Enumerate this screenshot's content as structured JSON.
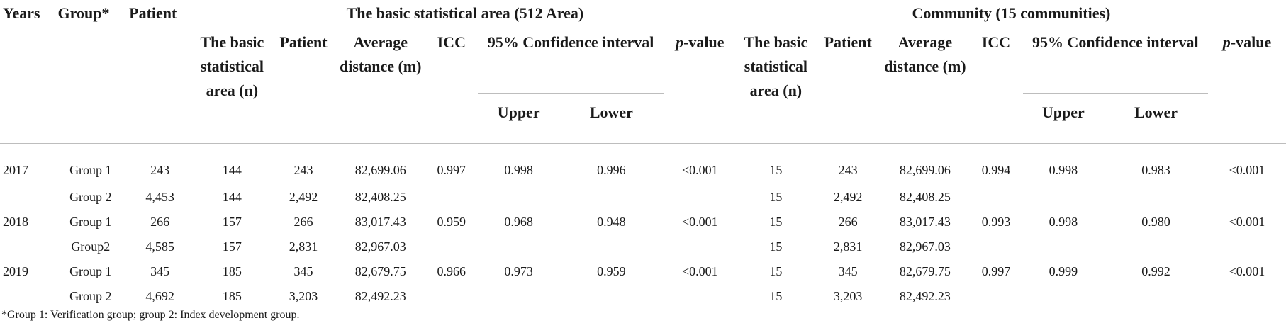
{
  "headers": {
    "years": "Years",
    "group": "Group*",
    "patient": "Patient",
    "bsa_title": "The basic statistical area (512 Area)",
    "community_title": "Community (15 communities)",
    "sub": {
      "area_n": "The basic statistical area (n)",
      "patient": "Patient",
      "avg_distance": "Average distance (m)",
      "icc": "ICC",
      "ci": "95% Confidence interval",
      "p_prefix": "p",
      "p_suffix": "-value",
      "upper": "Upper",
      "lower": "Lower"
    }
  },
  "rows": [
    {
      "year": "2017",
      "group": "Group 1",
      "patient": "243",
      "bsa": {
        "n": "144",
        "patient": "243",
        "dist": "82,699.06",
        "icc": "0.997",
        "upper": "0.998",
        "lower": "0.996",
        "p": "<0.001"
      },
      "com": {
        "n": "15",
        "patient": "243",
        "dist": "82,699.06",
        "icc": "0.994",
        "upper": "0.998",
        "lower": "0.983",
        "p": "<0.001"
      }
    },
    {
      "year": "",
      "group": "Group 2",
      "patient": "4,453",
      "bsa": {
        "n": "144",
        "patient": "2,492",
        "dist": "82,408.25",
        "icc": "",
        "upper": "",
        "lower": "",
        "p": ""
      },
      "com": {
        "n": "15",
        "patient": "2,492",
        "dist": "82,408.25",
        "icc": "",
        "upper": "",
        "lower": "",
        "p": ""
      }
    },
    {
      "year": "2018",
      "group": "Group 1",
      "patient": "266",
      "bsa": {
        "n": "157",
        "patient": "266",
        "dist": "83,017.43",
        "icc": "0.959",
        "upper": "0.968",
        "lower": "0.948",
        "p": "<0.001"
      },
      "com": {
        "n": "15",
        "patient": "266",
        "dist": "83,017.43",
        "icc": "0.993",
        "upper": "0.998",
        "lower": "0.980",
        "p": "<0.001"
      }
    },
    {
      "year": "",
      "group": "Group2",
      "patient": "4,585",
      "bsa": {
        "n": "157",
        "patient": "2,831",
        "dist": "82,967.03",
        "icc": "",
        "upper": "",
        "lower": "",
        "p": ""
      },
      "com": {
        "n": "15",
        "patient": "2,831",
        "dist": "82,967.03",
        "icc": "",
        "upper": "",
        "lower": "",
        "p": ""
      }
    },
    {
      "year": "2019",
      "group": "Group 1",
      "patient": "345",
      "bsa": {
        "n": "185",
        "patient": "345",
        "dist": "82,679.75",
        "icc": "0.966",
        "upper": "0.973",
        "lower": "0.959",
        "p": "<0.001"
      },
      "com": {
        "n": "15",
        "patient": "345",
        "dist": "82,679.75",
        "icc": "0.997",
        "upper": "0.999",
        "lower": "0.992",
        "p": "<0.001"
      }
    },
    {
      "year": "",
      "group": "Group 2",
      "patient": "4,692",
      "bsa": {
        "n": "185",
        "patient": "3,203",
        "dist": "82,492.23",
        "icc": "",
        "upper": "",
        "lower": "",
        "p": ""
      },
      "com": {
        "n": "15",
        "patient": "3,203",
        "dist": "82,492.23",
        "icc": "",
        "upper": "",
        "lower": "",
        "p": ""
      }
    }
  ],
  "footnote": "*Group 1: Verification group; group 2: Index development group."
}
